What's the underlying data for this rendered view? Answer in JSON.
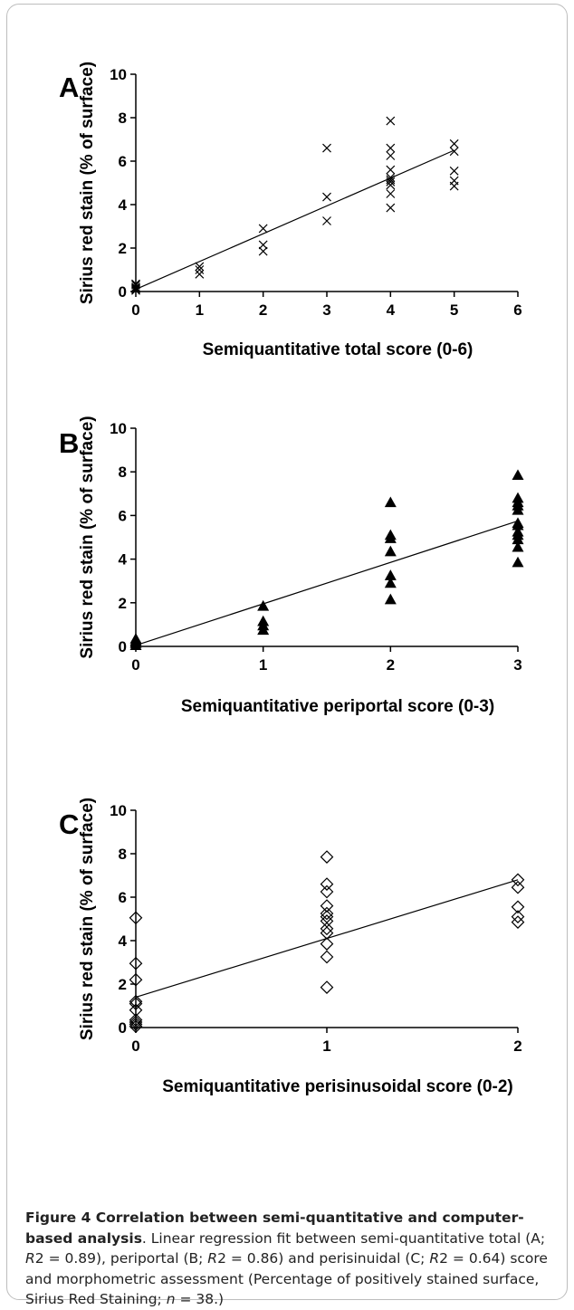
{
  "chart_data": [
    {
      "type": "scatter",
      "panel_label": "A",
      "xlabel": "Semiquantitative total score (0-6)",
      "ylabel": "Sirius red stain (% of surface)",
      "xlim": [
        0,
        6
      ],
      "ylim": [
        0,
        10
      ],
      "xticks": [
        "0",
        "1",
        "2",
        "3",
        "4",
        "5",
        "6"
      ],
      "yticks": [
        "0",
        "2",
        "4",
        "6",
        "8",
        "10"
      ],
      "marker": "x",
      "points": [
        [
          0,
          0.05
        ],
        [
          0,
          0.1
        ],
        [
          0,
          0.15
        ],
        [
          0,
          0.2
        ],
        [
          0,
          0.3
        ],
        [
          0,
          0.35
        ],
        [
          1,
          0.8
        ],
        [
          1,
          1.0
        ],
        [
          1,
          1.15
        ],
        [
          2,
          1.85
        ],
        [
          2,
          2.15
        ],
        [
          2,
          2.9
        ],
        [
          3,
          3.25
        ],
        [
          3,
          4.35
        ],
        [
          3,
          6.6
        ],
        [
          4,
          3.85
        ],
        [
          4,
          4.5
        ],
        [
          4,
          4.9
        ],
        [
          4,
          5.05
        ],
        [
          4,
          5.15
        ],
        [
          4,
          5.25
        ],
        [
          4,
          5.6
        ],
        [
          4,
          6.25
        ],
        [
          4,
          6.6
        ],
        [
          4,
          7.85
        ],
        [
          5,
          4.85
        ],
        [
          5,
          5.1
        ],
        [
          5,
          5.55
        ],
        [
          5,
          6.45
        ],
        [
          5,
          6.8
        ]
      ],
      "fit_line": {
        "x": [
          0,
          5
        ],
        "y": [
          0.1,
          6.5
        ]
      }
    },
    {
      "type": "scatter",
      "panel_label": "B",
      "xlabel": "Semiquantitative periportal score (0-3)",
      "ylabel": "Sirius red stain (% of surface)",
      "xlim": [
        0,
        3
      ],
      "ylim": [
        0,
        10
      ],
      "xticks": [
        "0",
        "1",
        "2",
        "3"
      ],
      "yticks": [
        "0",
        "2",
        "4",
        "6",
        "8",
        "10"
      ],
      "marker": "filled-triangle",
      "points": [
        [
          0,
          0.05
        ],
        [
          0,
          0.15
        ],
        [
          0,
          0.25
        ],
        [
          0,
          0.35
        ],
        [
          1,
          0.75
        ],
        [
          1,
          0.95
        ],
        [
          1,
          1.15
        ],
        [
          1,
          1.85
        ],
        [
          2,
          2.15
        ],
        [
          2,
          2.9
        ],
        [
          2,
          3.25
        ],
        [
          2,
          4.35
        ],
        [
          2,
          4.95
        ],
        [
          2,
          5.1
        ],
        [
          2,
          6.6
        ],
        [
          3,
          3.85
        ],
        [
          3,
          4.55
        ],
        [
          3,
          4.9
        ],
        [
          3,
          5.1
        ],
        [
          3,
          5.25
        ],
        [
          3,
          5.55
        ],
        [
          3,
          5.65
        ],
        [
          3,
          6.25
        ],
        [
          3,
          6.45
        ],
        [
          3,
          6.6
        ],
        [
          3,
          6.8
        ],
        [
          3,
          7.85
        ]
      ],
      "fit_line": {
        "x": [
          0,
          3
        ],
        "y": [
          0.05,
          5.75
        ]
      }
    },
    {
      "type": "scatter",
      "panel_label": "C",
      "xlabel": "Semiquantitative perisinusoidal score (0-2)",
      "ylabel": "Sirius red stain (% of surface)",
      "xlim": [
        0,
        2
      ],
      "ylim": [
        0,
        10
      ],
      "xticks": [
        "0",
        "1",
        "2"
      ],
      "yticks": [
        "0",
        "2",
        "4",
        "6",
        "8",
        "10"
      ],
      "marker": "open-diamond",
      "points": [
        [
          0,
          0.05
        ],
        [
          0,
          0.15
        ],
        [
          0,
          0.25
        ],
        [
          0,
          0.35
        ],
        [
          0,
          0.8
        ],
        [
          0,
          1.1
        ],
        [
          0,
          1.2
        ],
        [
          0,
          2.2
        ],
        [
          0,
          2.95
        ],
        [
          0,
          5.05
        ],
        [
          1,
          1.85
        ],
        [
          1,
          3.25
        ],
        [
          1,
          3.85
        ],
        [
          1,
          4.35
        ],
        [
          1,
          4.55
        ],
        [
          1,
          4.9
        ],
        [
          1,
          5.1
        ],
        [
          1,
          5.25
        ],
        [
          1,
          5.6
        ],
        [
          1,
          6.25
        ],
        [
          1,
          6.6
        ],
        [
          1,
          7.85
        ],
        [
          2,
          4.85
        ],
        [
          2,
          5.1
        ],
        [
          2,
          5.55
        ],
        [
          2,
          6.45
        ],
        [
          2,
          6.8
        ]
      ],
      "fit_line": {
        "x": [
          0,
          2
        ],
        "y": [
          1.4,
          6.8
        ]
      }
    }
  ],
  "caption": {
    "bold": "Figure 4 Correlation between semi-quantitative and computer-based analysis",
    "part1": ". Linear regression fit between semi-quantitative total (A; ",
    "r1_label": "R",
    "r1_value": "2 = 0.89), periportal (B; ",
    "r2_label": "R",
    "r2_value": "2 = 0.86) and perisinuidal (C; ",
    "r3_label": "R",
    "r3_value": "2 = 0.64) score and morphometric assessment (Percentage of positively stained surface, Sirius Red Staining; ",
    "n_label": "n",
    "n_value": " = 38.)"
  }
}
